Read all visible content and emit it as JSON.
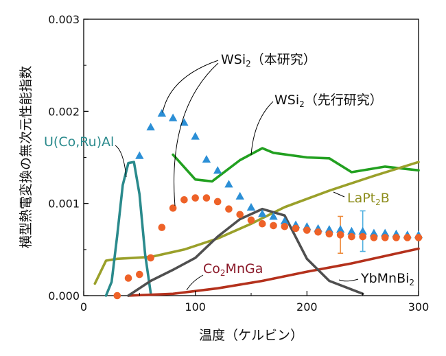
{
  "chart_data": {
    "type": "scatter",
    "xlabel": "温度（ケルビン）",
    "ylabel": "横型熱電変換の無次元性能指数",
    "xlim": [
      0,
      300
    ],
    "ylim": [
      0,
      0.003
    ],
    "x_ticks": [
      "0",
      "100",
      "200",
      "300"
    ],
    "y_ticks": [
      "0.000",
      "0.001",
      "0.002",
      "0.003"
    ],
    "grid": false,
    "annotations": {
      "wsi2_this": {
        "base": "WSi",
        "sub": "2",
        "tail": "（本研究）"
      },
      "wsi2_prior": {
        "base": "WSi",
        "sub": "2",
        "tail": "（先行研究）"
      },
      "ucoru": {
        "text": "U(Co,Ru)Al"
      },
      "lapt2b": {
        "pre": "LaPt",
        "sub": "2",
        "post": "B"
      },
      "co2mnga": {
        "pre": "Co",
        "sub": "2",
        "post": "MnGa"
      },
      "ybmnbi2": {
        "pre": "YbMnBi",
        "sub": "2",
        "post": ""
      }
    },
    "series": [
      {
        "kind": "markers",
        "marker": "triangle",
        "color": "#2b8fd6",
        "x": [
          50,
          60,
          70,
          80,
          90,
          100,
          110,
          120,
          130,
          140,
          150,
          160,
          170,
          180,
          190,
          200,
          210,
          220,
          230,
          240,
          250,
          260,
          270,
          280,
          290,
          300
        ],
        "y": [
          0.00152,
          0.00183,
          0.00198,
          0.00193,
          0.00188,
          0.00173,
          0.00148,
          0.00136,
          0.00121,
          0.00108,
          0.00096,
          0.00089,
          0.00086,
          0.00081,
          0.00077,
          0.00075,
          0.00073,
          0.00072,
          0.00072,
          0.0007,
          0.0007,
          0.00068,
          0.00068,
          0.00067,
          0.00066,
          0.00066
        ]
      },
      {
        "kind": "markers",
        "marker": "circle",
        "color": "#ee6228",
        "x": [
          30,
          40,
          50,
          60,
          70,
          80,
          90,
          100,
          110,
          120,
          130,
          140,
          150,
          160,
          170,
          180,
          190,
          200,
          210,
          220,
          230,
          240,
          250,
          260,
          270,
          280,
          290,
          300
        ],
        "y": [
          0.0,
          0.00019,
          0.00023,
          0.00041,
          0.00074,
          0.00095,
          0.00104,
          0.00106,
          0.00106,
          0.00102,
          0.00094,
          0.00088,
          0.00082,
          0.00078,
          0.00076,
          0.00075,
          0.00073,
          0.00071,
          0.00069,
          0.00067,
          0.00066,
          0.00064,
          0.00064,
          0.00063,
          0.00063,
          0.00063,
          0.00063,
          0.00063
        ]
      },
      {
        "kind": "line",
        "color": "#22a020",
        "x": [
          80,
          100,
          115,
          140,
          160,
          170,
          200,
          220,
          240,
          270,
          300
        ],
        "y": [
          0.00153,
          0.00126,
          0.00124,
          0.00147,
          0.0016,
          0.00155,
          0.0015,
          0.00149,
          0.00134,
          0.0014,
          0.00136
        ]
      },
      {
        "kind": "line",
        "color": "#9aa02a",
        "x": [
          10,
          20,
          30,
          60,
          90,
          120,
          150,
          180,
          220,
          260,
          300
        ],
        "y": [
          0.00013,
          0.00038,
          0.0004,
          0.00042,
          0.0005,
          0.00062,
          0.00078,
          0.00096,
          0.00114,
          0.0013,
          0.00145
        ]
      },
      {
        "kind": "line",
        "color": "#2a8a8c",
        "x": [
          20,
          25,
          30,
          35,
          40,
          45,
          50,
          55,
          60
        ],
        "y": [
          0.0,
          0.00015,
          0.00065,
          0.0012,
          0.00144,
          0.00145,
          0.0011,
          0.00045,
          3e-05
        ]
      },
      {
        "kind": "line",
        "color": "#b4311c",
        "x": [
          40,
          80,
          120,
          160,
          200,
          240,
          270,
          300
        ],
        "y": [
          0.0,
          2e-05,
          8e-05,
          0.00016,
          0.00026,
          0.00035,
          0.00043,
          0.00051
        ]
      },
      {
        "kind": "line",
        "color": "#4f4f4f",
        "x": [
          40,
          60,
          80,
          100,
          120,
          140,
          160,
          180,
          200,
          220,
          250
        ],
        "y": [
          0.0,
          0.00016,
          0.00028,
          0.00041,
          0.00064,
          0.00083,
          0.00094,
          0.00087,
          0.0004,
          0.00016,
          2e-05
        ]
      },
      {
        "kind": "errorbar",
        "color": "#ee8a3a",
        "x": [
          230
        ],
        "y": [
          0.00066
        ],
        "err": [
          0.0002
        ]
      },
      {
        "kind": "errorbar",
        "color": "#4fb0e0",
        "x": [
          250
        ],
        "y": [
          0.0007
        ],
        "err": [
          0.00022
        ]
      }
    ]
  }
}
